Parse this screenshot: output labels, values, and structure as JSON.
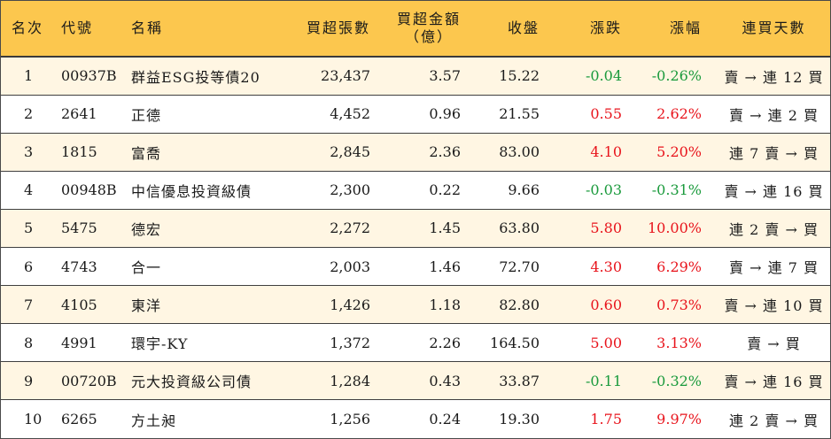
{
  "header": {
    "rank": "名次",
    "code": "代號",
    "name": "名稱",
    "net_buy_lots": "買超張數",
    "net_buy_amount_line1": "買超金額",
    "net_buy_amount_line2": "（億）",
    "close": "收盤",
    "change": "漲跌",
    "change_pct": "漲幅",
    "streak": "連買天數"
  },
  "colors": {
    "header_bg": "#fcc74e",
    "row_alt_bg": "#fff6e3",
    "up": "#e8141c",
    "down": "#1a9a3c"
  },
  "rows": [
    {
      "rank": "1",
      "code": "00937B",
      "name": "群益ESG投等債20",
      "lots": "23,437",
      "amount": "3.57",
      "close": "15.22",
      "change": "-0.04",
      "pct": "-0.26%",
      "dir": "down",
      "streak": "賣 → 連 12 買"
    },
    {
      "rank": "2",
      "code": "2641",
      "name": "正德",
      "lots": "4,452",
      "amount": "0.96",
      "close": "21.55",
      "change": "0.55",
      "pct": "2.62%",
      "dir": "up",
      "streak": "賣 → 連 2 買"
    },
    {
      "rank": "3",
      "code": "1815",
      "name": "富喬",
      "lots": "2,845",
      "amount": "2.36",
      "close": "83.00",
      "change": "4.10",
      "pct": "5.20%",
      "dir": "up",
      "streak": "連 7 賣 → 買"
    },
    {
      "rank": "4",
      "code": "00948B",
      "name": "中信優息投資級債",
      "lots": "2,300",
      "amount": "0.22",
      "close": "9.66",
      "change": "-0.03",
      "pct": "-0.31%",
      "dir": "down",
      "streak": "賣 → 連 16 買"
    },
    {
      "rank": "5",
      "code": "5475",
      "name": "德宏",
      "lots": "2,272",
      "amount": "1.45",
      "close": "63.80",
      "change": "5.80",
      "pct": "10.00%",
      "dir": "up",
      "streak": "連 2 賣 → 買"
    },
    {
      "rank": "6",
      "code": "4743",
      "name": "合一",
      "lots": "2,003",
      "amount": "1.46",
      "close": "72.70",
      "change": "4.30",
      "pct": "6.29%",
      "dir": "up",
      "streak": "賣 → 連 7 買"
    },
    {
      "rank": "7",
      "code": "4105",
      "name": "東洋",
      "lots": "1,426",
      "amount": "1.18",
      "close": "82.80",
      "change": "0.60",
      "pct": "0.73%",
      "dir": "up",
      "streak": "賣 → 連 10 買"
    },
    {
      "rank": "8",
      "code": "4991",
      "name": "環宇-KY",
      "lots": "1,372",
      "amount": "2.26",
      "close": "164.50",
      "change": "5.00",
      "pct": "3.13%",
      "dir": "up",
      "streak": "賣 → 買"
    },
    {
      "rank": "9",
      "code": "00720B",
      "name": "元大投資級公司債",
      "lots": "1,284",
      "amount": "0.43",
      "close": "33.87",
      "change": "-0.11",
      "pct": "-0.32%",
      "dir": "down",
      "streak": "賣 → 連 16 買"
    },
    {
      "rank": "10",
      "code": "6265",
      "name": "方土昶",
      "lots": "1,256",
      "amount": "0.24",
      "close": "19.30",
      "change": "1.75",
      "pct": "9.97%",
      "dir": "up",
      "streak": "連 2 賣 → 買"
    }
  ]
}
